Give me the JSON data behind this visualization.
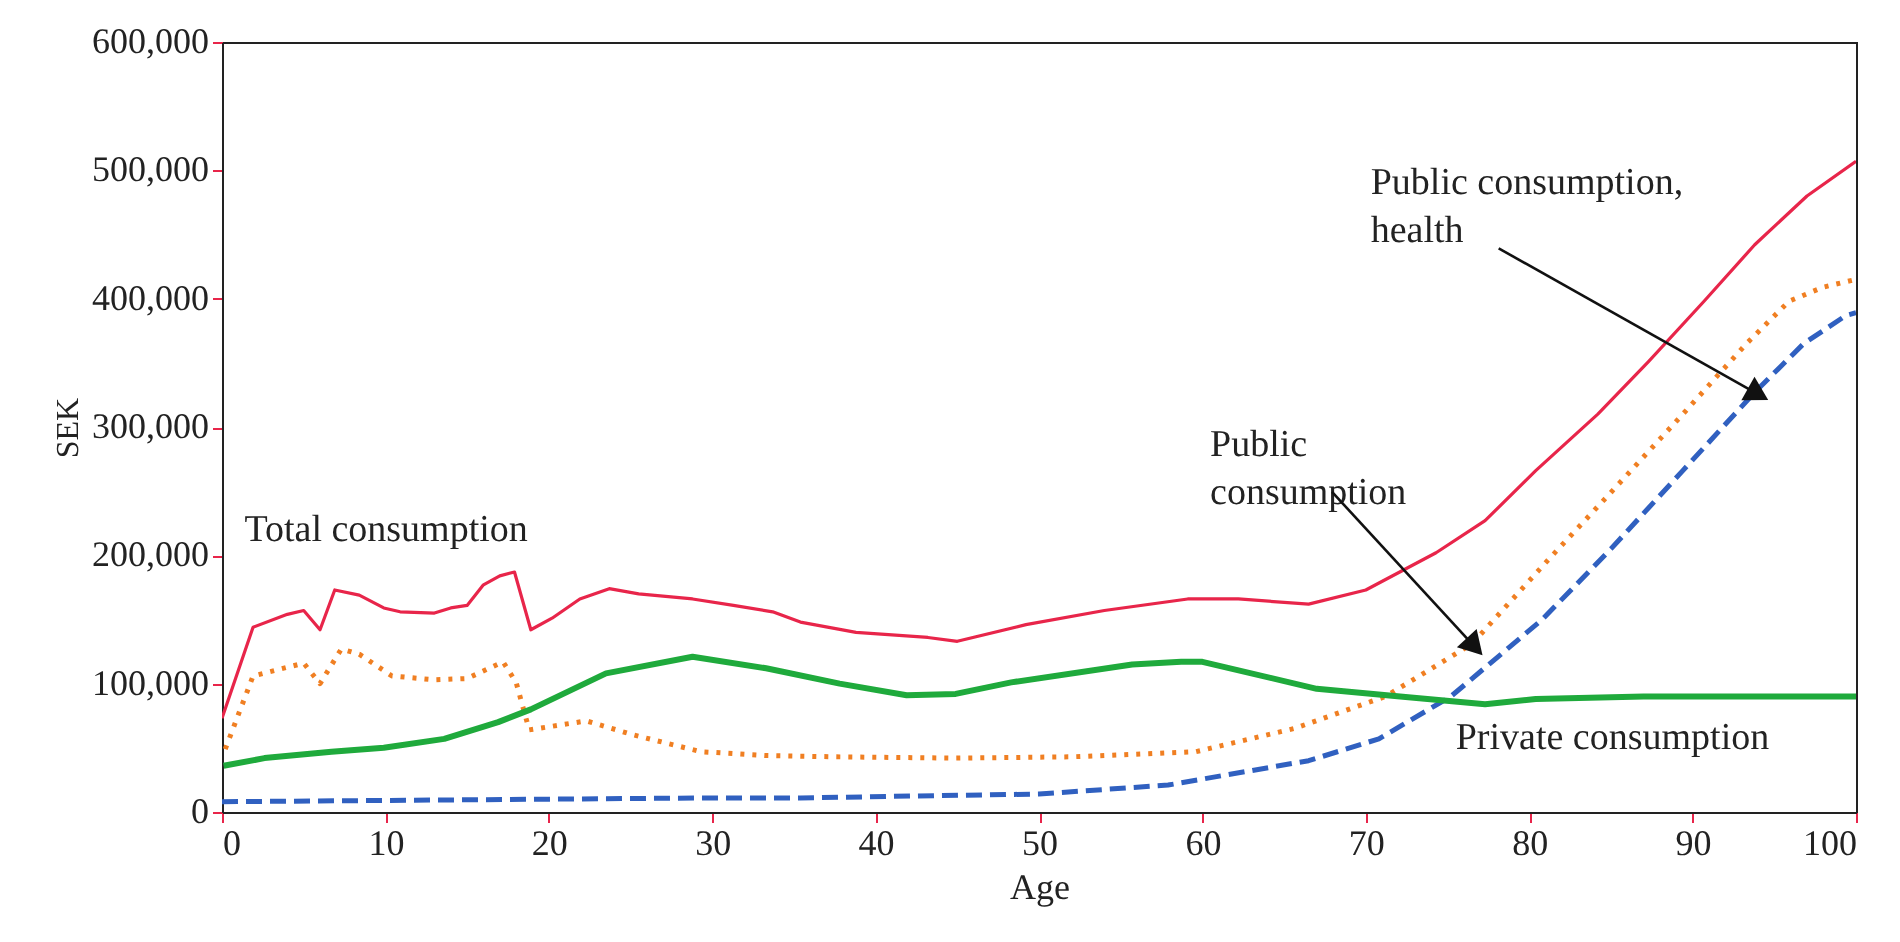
{
  "chart_data": {
    "type": "line",
    "xlabel": "Age",
    "ylabel": "SEK",
    "xlim": [
      0,
      100
    ],
    "ylim": [
      0,
      600000
    ],
    "xticks": [
      0,
      10,
      20,
      30,
      40,
      50,
      60,
      70,
      80,
      90,
      100
    ],
    "yticks": [
      0,
      {
        "value": 100000,
        "label": "100,000"
      },
      {
        "value": 200000,
        "label": "200,000"
      },
      {
        "value": 300000,
        "label": "300,000"
      },
      {
        "value": 400000,
        "label": "400,000"
      },
      {
        "value": 500000,
        "label": "500,000"
      },
      {
        "value": 600000,
        "label": "600,000"
      }
    ],
    "grid": false,
    "legend": false,
    "marker": "none",
    "series": [
      {
        "name": "Total consumption",
        "color": "#e8254a",
        "line_style": "solid",
        "x": [
          0,
          1.9,
          4,
          5,
          6,
          6.9,
          8.4,
          9.9,
          10.9,
          13,
          14,
          15,
          16,
          17,
          17.9,
          18.9,
          20.2,
          21.9,
          23.7,
          25.5,
          28.8,
          31.3,
          33.7,
          35.4,
          38.8,
          43.2,
          45,
          49.2,
          54,
          59.1,
          62.2,
          66.5,
          70,
          74.3,
          77.3,
          80.4,
          84.2,
          87.3,
          90.7,
          93.8,
          97,
          100
        ],
        "values": [
          73000,
          144000,
          154000,
          157000,
          142000,
          173000,
          169000,
          159000,
          156000,
          155000,
          159000,
          161000,
          177000,
          184000,
          187000,
          142000,
          151000,
          166000,
          174000,
          170000,
          166000,
          161000,
          156000,
          148000,
          140000,
          136000,
          133000,
          146000,
          157000,
          166000,
          166000,
          162000,
          173000,
          202000,
          227000,
          266000,
          310000,
          351000,
          398000,
          442000,
          480000,
          507000
        ]
      },
      {
        "name": "Public consumption",
        "color": "#f07f22",
        "line_style": "dotted",
        "x": [
          0.2,
          1.9,
          5,
          6,
          7.3,
          8.4,
          10.4,
          13,
          15,
          17.2,
          18,
          18.8,
          22.3,
          25.2,
          29.3,
          33.3,
          37.5,
          44.9,
          52,
          59.6,
          65.6,
          71.2,
          76.5,
          81.2,
          85,
          89.4,
          93.3,
          95.9,
          98,
          100
        ],
        "values": [
          49000,
          106000,
          116000,
          100000,
          127000,
          123000,
          106000,
          103000,
          104000,
          117000,
          101000,
          64000,
          71000,
          60000,
          47000,
          44000,
          43000,
          42000,
          43000,
          47000,
          65000,
          90000,
          131000,
          197000,
          249000,
          310000,
          365000,
          398000,
          409000,
          415000
        ]
      },
      {
        "name": "Public consumption, health",
        "color": "#3060c0",
        "line_style": "dashed",
        "x": [
          0,
          10,
          20,
          30,
          35.4,
          50,
          57.9,
          66.5,
          70.8,
          75.2,
          80.8,
          85,
          89.4,
          93.8,
          96.8,
          99.4,
          100
        ],
        "values": [
          8000,
          9000,
          10000,
          11000,
          11000,
          14000,
          21000,
          40000,
          57000,
          90000,
          150000,
          205000,
          266000,
          327000,
          365000,
          387000,
          389000
        ]
      },
      {
        "name": "Private consumption",
        "color": "#1faa3c",
        "line_style": "solid",
        "x": [
          0.1,
          2.6,
          6.7,
          9.9,
          13.6,
          16.9,
          18.9,
          23.5,
          28.8,
          33.3,
          37.8,
          41.9,
          44.9,
          48.3,
          55.7,
          58.7,
          60,
          67,
          72.1,
          77.3,
          80.4,
          87,
          100
        ],
        "values": [
          36000,
          42000,
          47000,
          50000,
          57000,
          70000,
          80000,
          108000,
          121000,
          112000,
          100000,
          91000,
          92000,
          101000,
          115000,
          117000,
          117000,
          96000,
          90000,
          84000,
          88000,
          90000,
          90000
        ]
      }
    ]
  }
}
